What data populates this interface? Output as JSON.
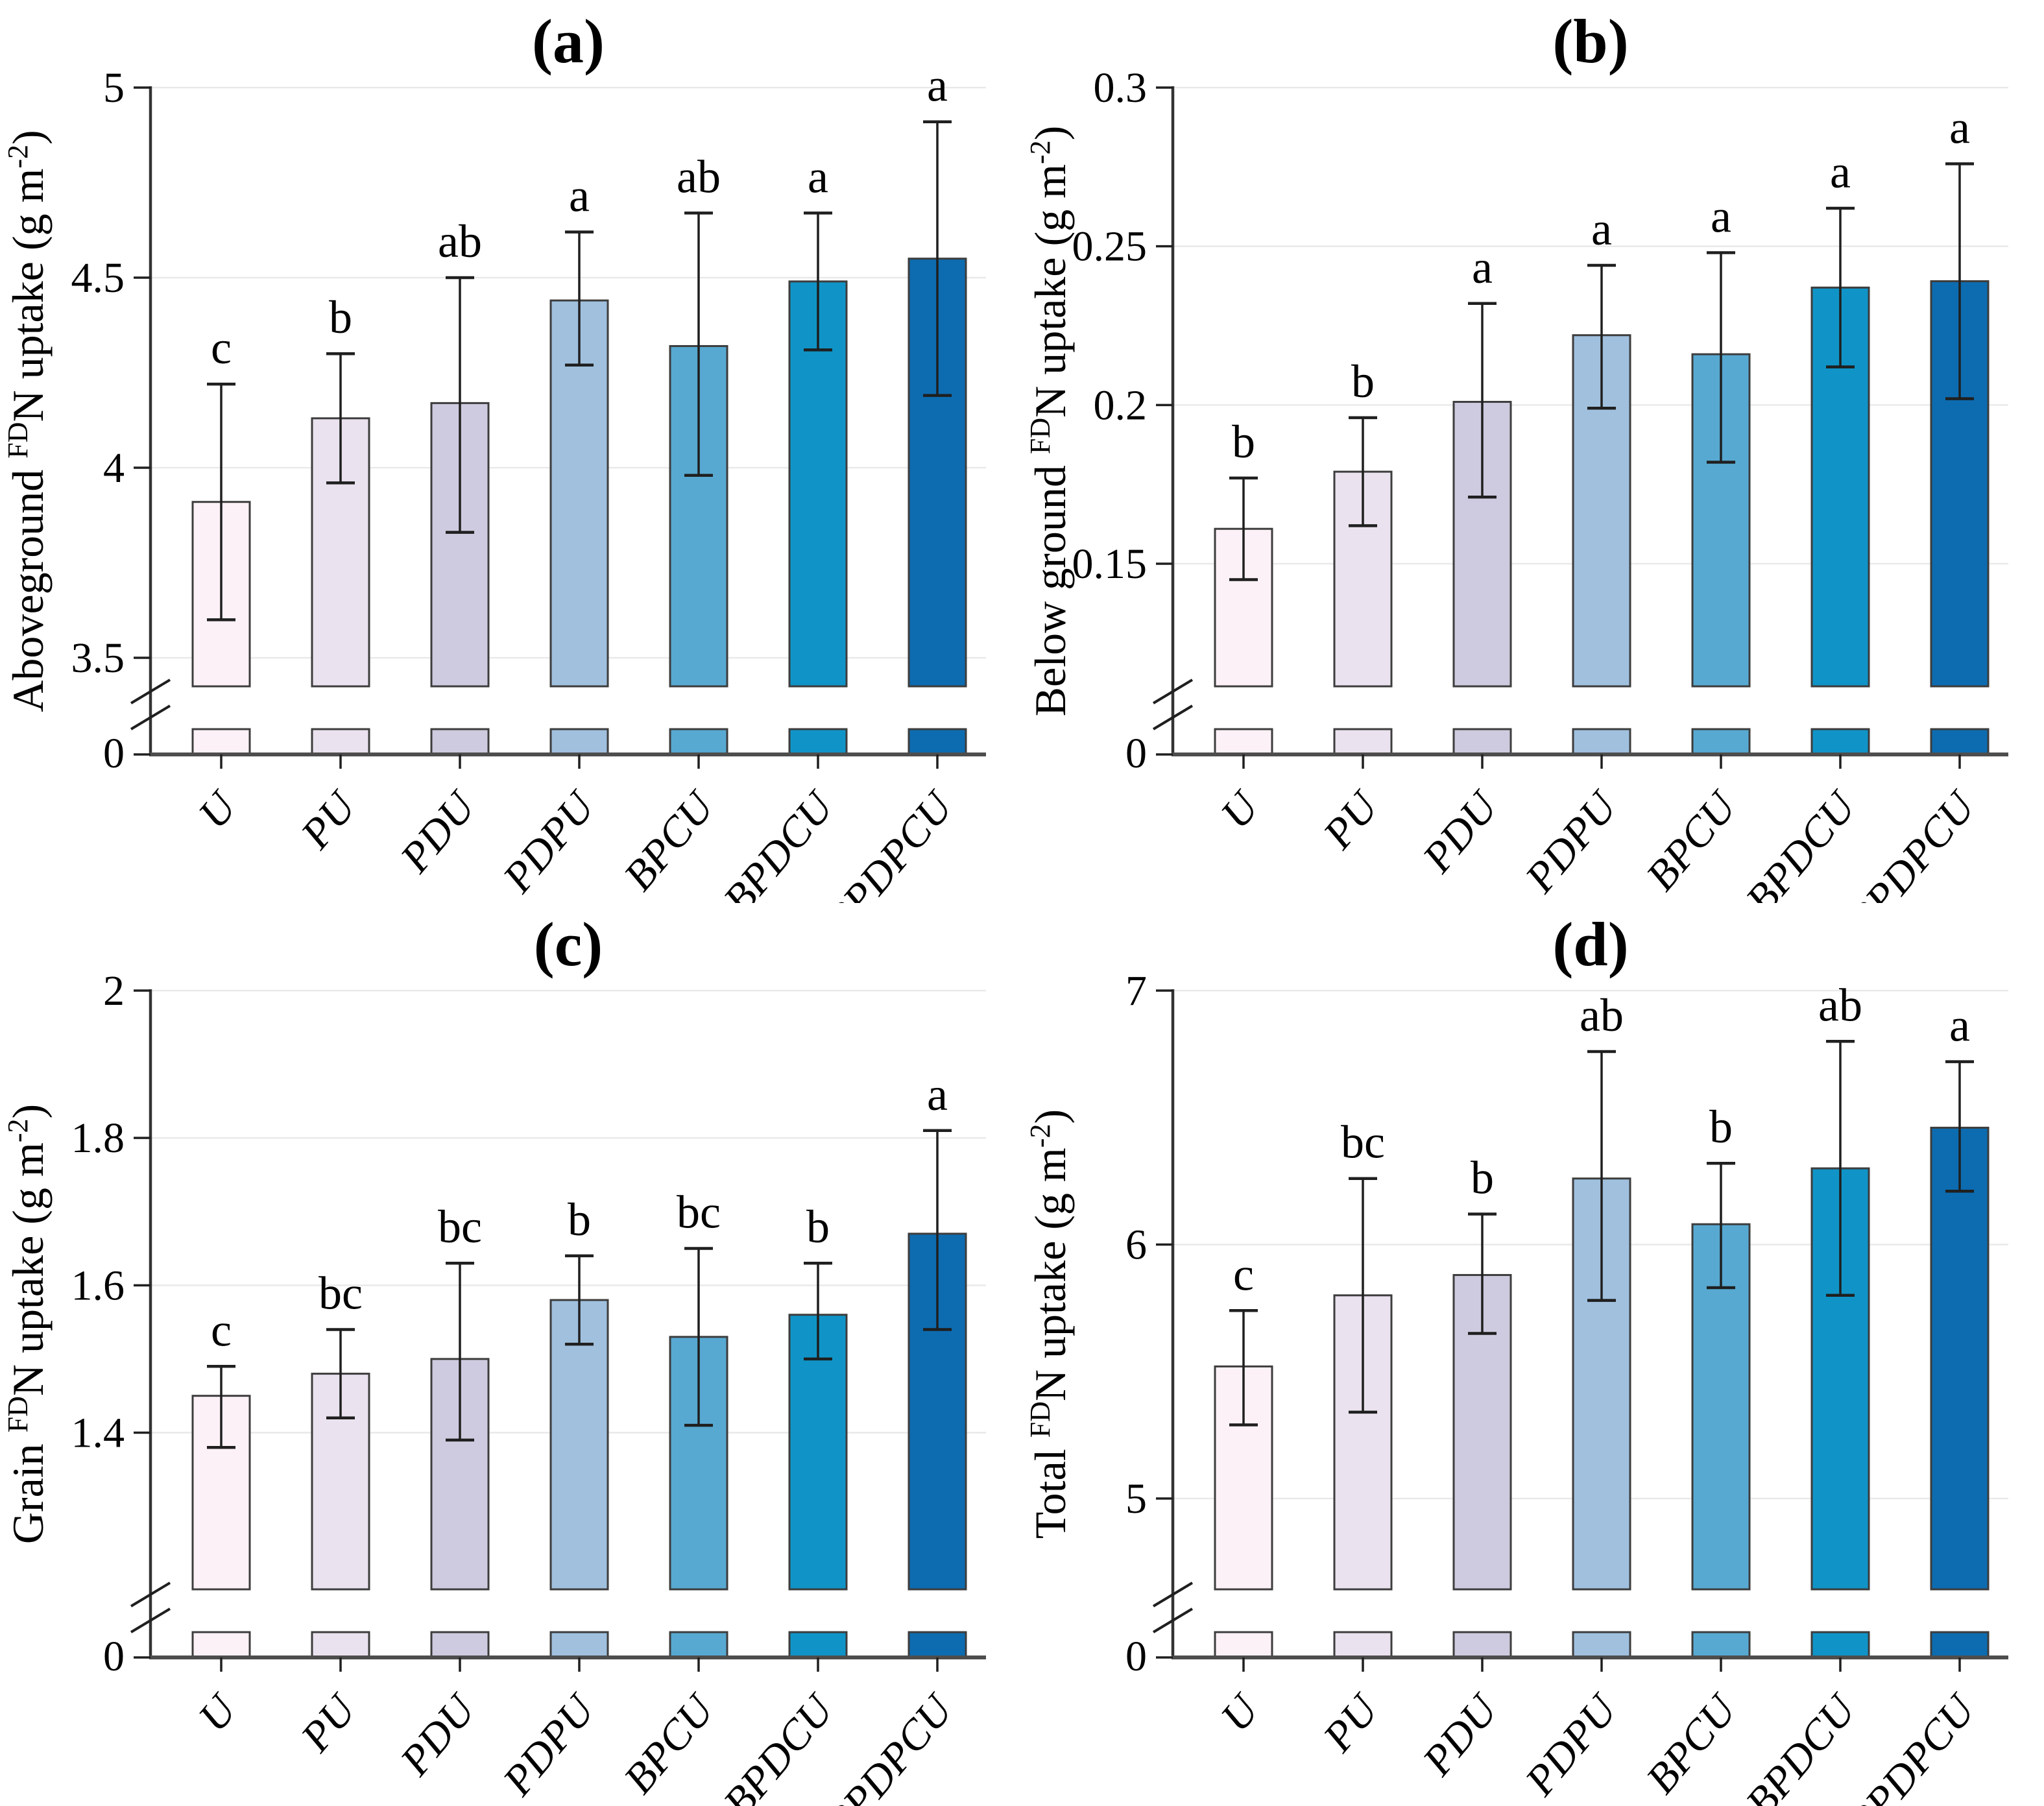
{
  "figure": {
    "background": "#ffffff",
    "categories": [
      "U",
      "PU",
      "PDU",
      "PDPU",
      "BPCU",
      "BPDCU",
      "BPDPCU"
    ],
    "bar_colors": [
      "#fcf1f7",
      "#eae2ef",
      "#cecbe0",
      "#a0c0de",
      "#57a9d1",
      "#1094c7",
      "#0d6cb0"
    ],
    "style_colors": {
      "bar_outline": "#3d3d3d",
      "y_axis": "#333333",
      "x_axis": "#4d4d4d",
      "gridline": "#e9e9e9",
      "error_bar": "#1f1f1f",
      "text": "#000000"
    }
  },
  "chart_data": [
    {
      "type": "bar",
      "panel": "a",
      "title": "(a)",
      "ylabel": "Aboveground FDN uptake (g m-2)",
      "ylabel_parts": [
        {
          "text": "Aboveground ",
          "sup": false
        },
        {
          "text": "FD",
          "sup": true
        },
        {
          "text": "N uptake  (g m",
          "sup": false
        },
        {
          "text": "-2",
          "sup": true
        },
        {
          "text": ")",
          "sup": false
        }
      ],
      "xlabel": "",
      "categories": [
        "U",
        "PU",
        "PDU",
        "PDPU",
        "BPCU",
        "BPDCU",
        "BPDPCU"
      ],
      "values": [
        3.91,
        4.13,
        4.17,
        4.44,
        4.32,
        4.49,
        4.55
      ],
      "err_low": [
        3.6,
        3.96,
        3.83,
        4.27,
        3.98,
        4.31,
        4.19
      ],
      "err_high": [
        4.22,
        4.3,
        4.5,
        4.62,
        4.67,
        4.67,
        4.91
      ],
      "sig_letters": [
        "c",
        "b",
        "ab",
        "a",
        "ab",
        "a",
        "a"
      ],
      "yticks": [
        {
          "value": 5,
          "label": "5"
        },
        {
          "value": 4.5,
          "label": "4.5"
        },
        {
          "value": 4,
          "label": "4"
        },
        {
          "value": 3.5,
          "label": "3.5"
        }
      ],
      "zero_tick_label": "0",
      "axis_break": true,
      "ylim_display": [
        3.43,
        5
      ],
      "grid": true,
      "legend": "none"
    },
    {
      "type": "bar",
      "panel": "b",
      "title": "(b)",
      "ylabel": "Below ground FDN uptake (g m-2)",
      "ylabel_parts": [
        {
          "text": "Below ground ",
          "sup": false
        },
        {
          "text": "FD",
          "sup": true
        },
        {
          "text": "N uptake  (g m",
          "sup": false
        },
        {
          "text": "-2",
          "sup": true
        },
        {
          "text": ")",
          "sup": false
        }
      ],
      "xlabel": "",
      "categories": [
        "U",
        "PU",
        "PDU",
        "PDPU",
        "BPCU",
        "BPDCU",
        "BPDPCU"
      ],
      "values": [
        0.161,
        0.179,
        0.201,
        0.222,
        0.216,
        0.237,
        0.239
      ],
      "err_low": [
        0.145,
        0.162,
        0.171,
        0.199,
        0.182,
        0.212,
        0.202
      ],
      "err_high": [
        0.177,
        0.196,
        0.232,
        0.244,
        0.248,
        0.262,
        0.276
      ],
      "sig_letters": [
        "b",
        "b",
        "a",
        "a",
        "a",
        "a",
        "a"
      ],
      "yticks": [
        {
          "value": 0.3,
          "label": "0.3"
        },
        {
          "value": 0.25,
          "label": "0.25"
        },
        {
          "value": 0.2,
          "label": "0.2"
        },
        {
          "value": 0.15,
          "label": "0.15"
        }
      ],
      "zero_tick_label": "0",
      "axis_break": true,
      "ylim_display": [
        0.112,
        0.3
      ],
      "grid": true,
      "legend": "none"
    },
    {
      "type": "bar",
      "panel": "c",
      "title": "(c)",
      "ylabel": "Grain FDN uptake (g m-2)",
      "ylabel_parts": [
        {
          "text": "Grain ",
          "sup": false
        },
        {
          "text": "FD",
          "sup": true
        },
        {
          "text": "N uptake  (g m",
          "sup": false
        },
        {
          "text": "-2",
          "sup": true
        },
        {
          "text": ")",
          "sup": false
        }
      ],
      "xlabel": "",
      "categories": [
        "U",
        "PU",
        "PDU",
        "PDPU",
        "BPCU",
        "BPDCU",
        "BPDPCU"
      ],
      "values": [
        1.45,
        1.48,
        1.5,
        1.58,
        1.53,
        1.56,
        1.67
      ],
      "err_low": [
        1.38,
        1.42,
        1.39,
        1.52,
        1.41,
        1.5,
        1.54
      ],
      "err_high": [
        1.49,
        1.54,
        1.63,
        1.64,
        1.65,
        1.63,
        1.81
      ],
      "sig_letters": [
        "c",
        "bc",
        "bc",
        "b",
        "bc",
        "b",
        "a"
      ],
      "yticks": [
        {
          "value": 2,
          "label": "2"
        },
        {
          "value": 1.8,
          "label": "1.8"
        },
        {
          "value": 1.6,
          "label": "1.6"
        },
        {
          "value": 1.4,
          "label": "1.4"
        }
      ],
      "zero_tick_label": "0",
      "axis_break": true,
      "ylim_display": [
        1.19,
        2
      ],
      "grid": true,
      "legend": "none"
    },
    {
      "type": "bar",
      "panel": "d",
      "title": "(d)",
      "ylabel": "Total FDN uptake (g m-2)",
      "ylabel_parts": [
        {
          "text": "Total ",
          "sup": false
        },
        {
          "text": "FD",
          "sup": true
        },
        {
          "text": "N uptake  (g m",
          "sup": false
        },
        {
          "text": "-2",
          "sup": true
        },
        {
          "text": ")",
          "sup": false
        }
      ],
      "xlabel": "",
      "categories": [
        "U",
        "PU",
        "PDU",
        "PDPU",
        "BPCU",
        "BPDCU",
        "BPDPCU"
      ],
      "values": [
        5.52,
        5.8,
        5.88,
        6.26,
        6.08,
        6.3,
        6.46
      ],
      "err_low": [
        5.29,
        5.34,
        5.65,
        5.78,
        5.83,
        5.8,
        6.21
      ],
      "err_high": [
        5.74,
        6.26,
        6.12,
        6.76,
        6.32,
        6.8,
        6.72
      ],
      "sig_letters": [
        "c",
        "bc",
        "b",
        "ab",
        "b",
        "ab",
        "a"
      ],
      "yticks": [
        {
          "value": 7,
          "label": "7"
        },
        {
          "value": 6,
          "label": "6"
        },
        {
          "value": 5,
          "label": "5"
        }
      ],
      "zero_tick_label": "0",
      "axis_break": true,
      "ylim_display": [
        4.65,
        7
      ],
      "grid": true,
      "legend": "none"
    }
  ]
}
